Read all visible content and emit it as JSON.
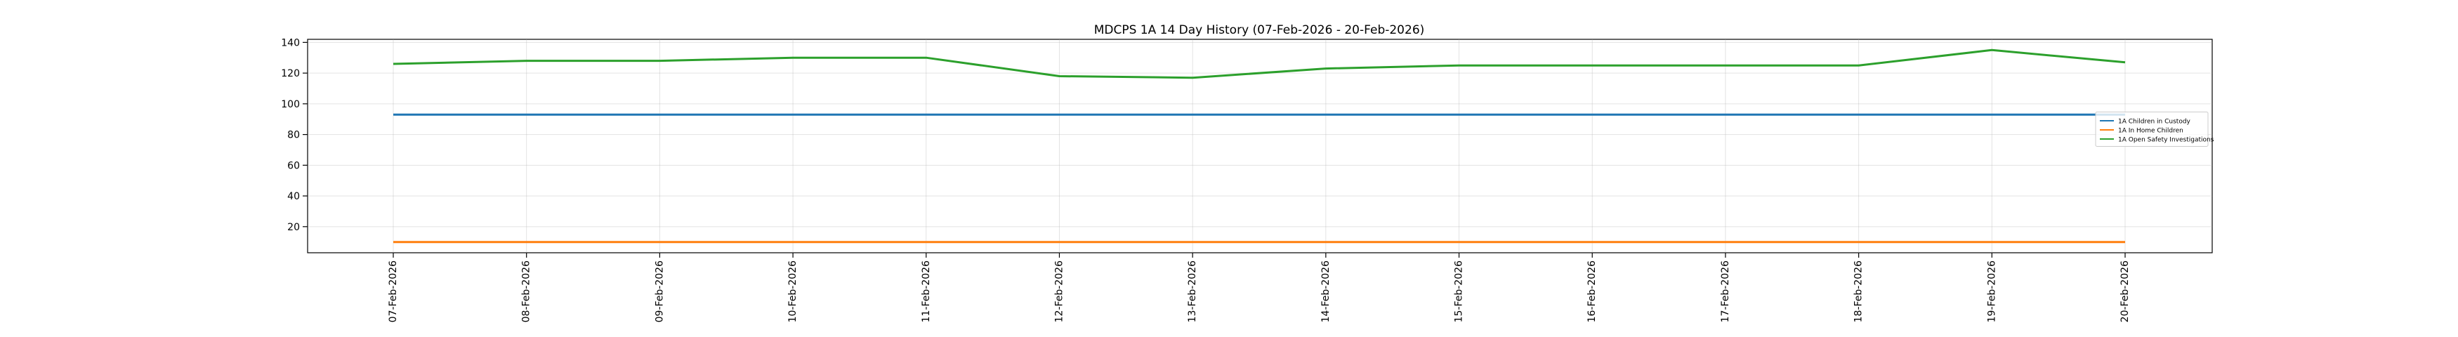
{
  "chart_data": {
    "type": "line",
    "title": "MDCPS 1A 14 Day History (07-Feb-2026 - 20-Feb-2026)",
    "xlabel": "",
    "ylabel": "",
    "x": [
      "07-Feb-2026",
      "08-Feb-2026",
      "09-Feb-2026",
      "10-Feb-2026",
      "11-Feb-2026",
      "12-Feb-2026",
      "13-Feb-2026",
      "14-Feb-2026",
      "15-Feb-2026",
      "16-Feb-2026",
      "17-Feb-2026",
      "18-Feb-2026",
      "19-Feb-2026",
      "20-Feb-2026"
    ],
    "ylim": [
      3,
      142
    ],
    "yticks": [
      20,
      40,
      60,
      80,
      100,
      120,
      140
    ],
    "grid": true,
    "legend_position": "right",
    "series": [
      {
        "name": "1A Children in Custody",
        "color": "#1f77b4",
        "values": [
          93,
          93,
          93,
          93,
          93,
          93,
          93,
          93,
          93,
          93,
          93,
          93,
          93,
          93
        ]
      },
      {
        "name": "1A In Home Children",
        "color": "#ff7f0e",
        "values": [
          10,
          10,
          10,
          10,
          10,
          10,
          10,
          10,
          10,
          10,
          10,
          10,
          10,
          10
        ]
      },
      {
        "name": "1A Open Safety Investigations",
        "color": "#2ca02c",
        "values": [
          126,
          128,
          128,
          130,
          130,
          118,
          117,
          123,
          125,
          125,
          125,
          125,
          135,
          127
        ]
      }
    ]
  }
}
